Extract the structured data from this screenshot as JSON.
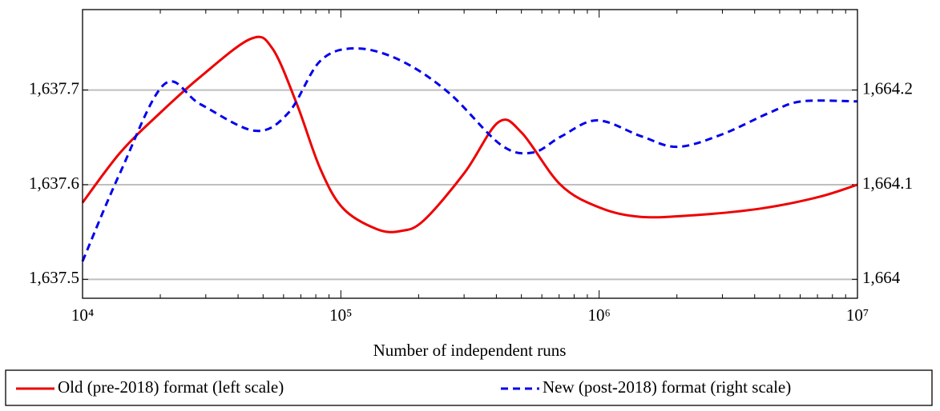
{
  "chart_data": {
    "type": "line",
    "xlabel": "Number of independent runs",
    "xscale": "log",
    "xlim": [
      10000,
      10000000
    ],
    "xticks": [
      {
        "value": 10000,
        "label": "10⁴"
      },
      {
        "value": 100000,
        "label": "10⁵"
      },
      {
        "value": 1000000,
        "label": "10⁶"
      },
      {
        "value": 10000000,
        "label": "10⁷"
      }
    ],
    "ylim": [
      1637.48,
      1637.785
    ],
    "yticks": [
      {
        "value": 1637.5,
        "label": "1,637.5"
      },
      {
        "value": 1637.6,
        "label": "1,637.6"
      },
      {
        "value": 1637.7,
        "label": "1,637.7"
      }
    ],
    "y2lim": [
      1663.98,
      1664.285
    ],
    "y2ticks": [
      {
        "value": 1664,
        "label": "1,664"
      },
      {
        "value": 1664.1,
        "label": "1,664.1"
      },
      {
        "value": 1664.2,
        "label": "1,664.2"
      }
    ],
    "grid": true,
    "legend": "bottom",
    "series": [
      {
        "name": "Old (pre-2018) format (left scale)",
        "color": "#ee0000",
        "dash": false,
        "axis": "y",
        "x": [
          10000,
          14000,
          20000,
          28600,
          44700,
          54300,
          67600,
          83200,
          102000,
          138000,
          170000,
          209000,
          302000,
          407000,
          501000,
          708000,
          1000000,
          1450000,
          2400000,
          4270000,
          7080000,
          10000000
        ],
        "values": [
          1637.581,
          1637.634,
          1637.676,
          1637.714,
          1637.754,
          1637.744,
          1637.685,
          1637.617,
          1637.575,
          1637.553,
          1637.551,
          1637.562,
          1637.613,
          1637.666,
          1637.655,
          1637.6,
          1637.576,
          1637.566,
          1637.568,
          1637.575,
          1637.587,
          1637.6
        ]
      },
      {
        "name": "New (post-2018) format (right scale)",
        "color": "#0000ee",
        "dash": true,
        "axis": "y2",
        "x": [
          10000,
          14000,
          20700,
          28600,
          46400,
          62700,
          83400,
          115000,
          171000,
          262000,
          417000,
          555000,
          713000,
          982000,
          1460000,
          2010000,
          2980000,
          4560000,
          6070000,
          10000000
        ],
        "values": [
          1664.019,
          1664.113,
          1664.206,
          1664.185,
          1664.157,
          1664.176,
          1664.231,
          1664.244,
          1664.231,
          1664.197,
          1664.142,
          1664.134,
          1664.151,
          1664.168,
          1664.151,
          1664.14,
          1664.153,
          1664.176,
          1664.188,
          1664.188
        ]
      }
    ]
  }
}
